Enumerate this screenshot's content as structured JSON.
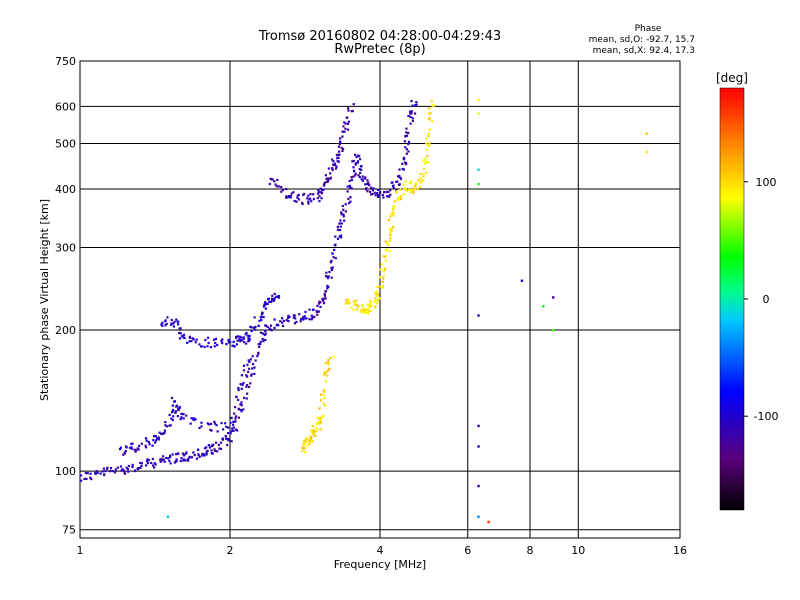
{
  "chart_data": {
    "type": "scatter",
    "title": "Tromsø 20160802 04:28:00-04:29:43",
    "subtitle": "RwPretec (8p)",
    "xlabel": "Frequency [MHz]",
    "ylabel": "Stationary phase Virtual Height [km]",
    "x_scale": "log",
    "y_scale": "log",
    "xlim": [
      1,
      16
    ],
    "ylim": [
      72,
      750
    ],
    "x_ticks": [
      "1",
      "2",
      "4",
      "6",
      "8",
      "10",
      "16"
    ],
    "y_ticks": [
      "75",
      "100",
      "200",
      "300",
      "400",
      "500",
      "600",
      "750"
    ],
    "grid": true,
    "phase_stats": {
      "heading": "Phase",
      "line_o": "mean, sd,O: -92.7, 15.7",
      "line_x": "mean, sd,X:  92.4, 17.3"
    },
    "colorbar": {
      "label": "[deg]",
      "range": [
        -180,
        180
      ],
      "ticks": [
        "100",
        "0",
        "-100"
      ],
      "colormap": "rainbow: black-purple-blue-cyan-green-yellow-orange-red"
    },
    "traces": [
      {
        "mode": "O",
        "phase_deg": -110,
        "description_points": [
          [
            1.0,
            97
          ],
          [
            1.1,
            99
          ],
          [
            1.2,
            101
          ],
          [
            1.3,
            102
          ],
          [
            1.4,
            104
          ],
          [
            1.5,
            106
          ],
          [
            1.6,
            107
          ],
          [
            1.7,
            108
          ],
          [
            1.8,
            110
          ],
          [
            1.9,
            113
          ],
          [
            2.0,
            118
          ],
          [
            2.1,
            135
          ],
          [
            2.2,
            160
          ],
          [
            2.3,
            190
          ],
          [
            2.4,
            205
          ],
          [
            2.6,
            210
          ],
          [
            2.8,
            212
          ],
          [
            3.0,
            218
          ],
          [
            3.1,
            240
          ],
          [
            3.2,
            270
          ],
          [
            3.3,
            320
          ],
          [
            3.4,
            360
          ],
          [
            3.5,
            420
          ],
          [
            3.6,
            470
          ],
          [
            3.7,
            420
          ],
          [
            3.8,
            400
          ],
          [
            4.0,
            390
          ],
          [
            4.2,
            395
          ],
          [
            4.4,
            420
          ],
          [
            4.5,
            480
          ],
          [
            4.6,
            560
          ],
          [
            4.7,
            620
          ]
        ]
      },
      {
        "mode": "O",
        "phase_deg": -105,
        "description_points": [
          [
            1.2,
            110
          ],
          [
            1.3,
            113
          ],
          [
            1.4,
            116
          ],
          [
            1.5,
            125
          ],
          [
            1.55,
            140
          ],
          [
            1.6,
            130
          ],
          [
            1.8,
            125
          ],
          [
            2.0,
            123
          ],
          [
            2.1,
            150
          ],
          [
            2.2,
            175
          ]
        ]
      },
      {
        "mode": "O",
        "phase_deg": -100,
        "description_points": [
          [
            1.45,
            210
          ],
          [
            1.55,
            206
          ],
          [
            1.65,
            190
          ],
          [
            1.8,
            188
          ],
          [
            2.0,
            188
          ],
          [
            2.1,
            190
          ],
          [
            2.2,
            195
          ],
          [
            2.3,
            215
          ],
          [
            2.4,
            230
          ],
          [
            2.5,
            240
          ]
        ]
      },
      {
        "mode": "O",
        "phase_deg": -115,
        "description_points": [
          [
            2.4,
            420
          ],
          [
            2.6,
            390
          ],
          [
            2.8,
            380
          ],
          [
            3.0,
            385
          ],
          [
            3.1,
            410
          ],
          [
            3.2,
            440
          ],
          [
            3.3,
            470
          ],
          [
            3.4,
            540
          ],
          [
            3.5,
            600
          ]
        ]
      },
      {
        "mode": "X",
        "phase_deg": 95,
        "description_points": [
          [
            3.4,
            230
          ],
          [
            3.6,
            225
          ],
          [
            3.8,
            222
          ],
          [
            3.9,
            230
          ],
          [
            4.0,
            250
          ],
          [
            4.1,
            290
          ],
          [
            4.2,
            330
          ],
          [
            4.3,
            380
          ],
          [
            4.5,
            410
          ],
          [
            4.7,
            400
          ],
          [
            4.9,
            430
          ],
          [
            5.0,
            500
          ],
          [
            5.1,
            640
          ]
        ]
      },
      {
        "mode": "X",
        "phase_deg": 100,
        "description_points": [
          [
            2.8,
            112
          ],
          [
            2.85,
            115
          ],
          [
            2.9,
            118
          ],
          [
            3.0,
            125
          ],
          [
            3.05,
            130
          ],
          [
            3.1,
            160
          ],
          [
            3.2,
            175
          ]
        ]
      }
    ],
    "isolated_points": [
      {
        "x": 6.3,
        "y": 620,
        "phase_deg": 90
      },
      {
        "x": 6.3,
        "y": 580,
        "phase_deg": 80
      },
      {
        "x": 6.3,
        "y": 410,
        "phase_deg": 40
      },
      {
        "x": 6.3,
        "y": 440,
        "phase_deg": -10
      },
      {
        "x": 6.3,
        "y": 215,
        "phase_deg": -110
      },
      {
        "x": 6.3,
        "y": 125,
        "phase_deg": -115
      },
      {
        "x": 6.3,
        "y": 113,
        "phase_deg": -110
      },
      {
        "x": 6.3,
        "y": 93,
        "phase_deg": -115
      },
      {
        "x": 6.3,
        "y": 80,
        "phase_deg": -40
      },
      {
        "x": 6.6,
        "y": 78,
        "phase_deg": 160
      },
      {
        "x": 7.7,
        "y": 255,
        "phase_deg": -100
      },
      {
        "x": 8.5,
        "y": 225,
        "phase_deg": 30
      },
      {
        "x": 8.9,
        "y": 235,
        "phase_deg": -120
      },
      {
        "x": 8.9,
        "y": 200,
        "phase_deg": 50
      },
      {
        "x": 13.7,
        "y": 525,
        "phase_deg": 110
      },
      {
        "x": 13.7,
        "y": 480,
        "phase_deg": 95
      },
      {
        "x": 1.5,
        "y": 80,
        "phase_deg": -20
      }
    ]
  }
}
